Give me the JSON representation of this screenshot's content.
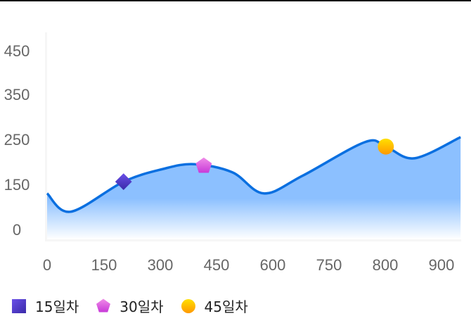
{
  "chart_data": {
    "type": "area",
    "yticks": [
      0,
      150,
      250,
      350,
      450
    ],
    "xticks": [
      0,
      150,
      300,
      450,
      600,
      750,
      800,
      900
    ],
    "curve": {
      "x": [
        0,
        62,
        202,
        306,
        390,
        492,
        576,
        679,
        782,
        801,
        852,
        934
      ],
      "y": [
        120,
        59,
        156,
        184,
        195,
        177,
        120,
        169,
        244,
        234,
        208,
        255
      ]
    },
    "line_color": "#0a6fe0",
    "fill_gradient": [
      "#7db8ff",
      "#ffffff"
    ],
    "markers": [
      {
        "name": "15일차",
        "shape": "square",
        "x": 202,
        "y": 156,
        "color": "#5a3fd0"
      },
      {
        "name": "30일차",
        "shape": "pentagon",
        "x": 416,
        "y": 191,
        "color": "#d84fe0"
      },
      {
        "name": "45일차",
        "shape": "circle",
        "x": 801,
        "y": 234,
        "color": "#ffb400"
      }
    ],
    "legend_position": "bottom-left",
    "grid": false
  }
}
